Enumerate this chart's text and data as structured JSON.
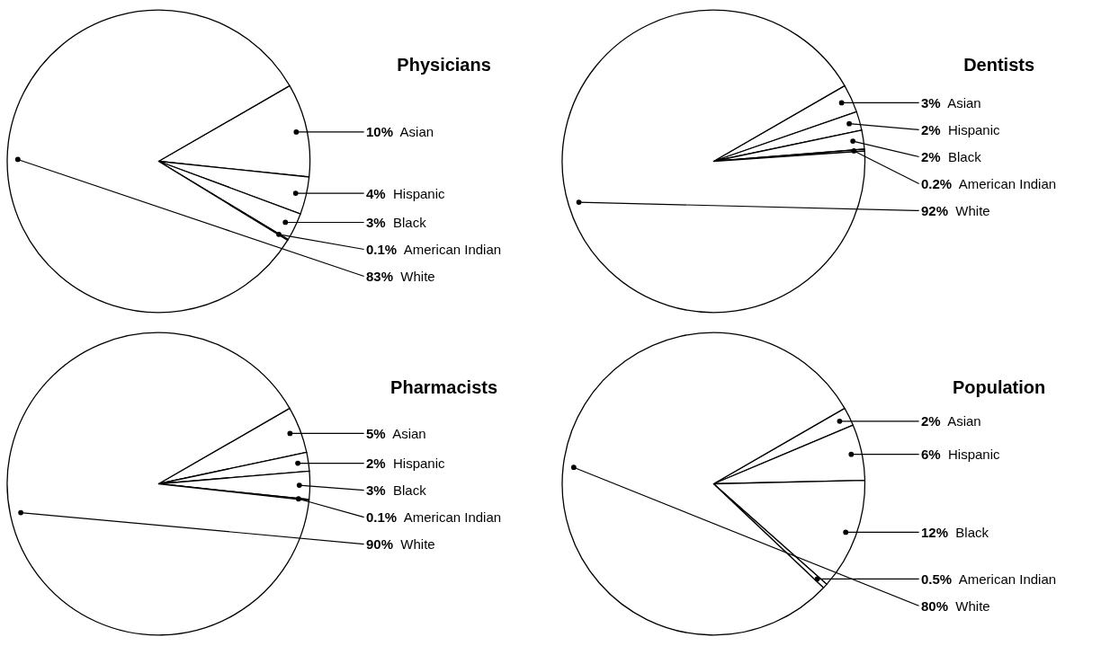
{
  "chart_data": [
    {
      "type": "pie",
      "title": "Physicians",
      "categories": [
        "Asian",
        "Hispanic",
        "Black",
        "American Indian",
        "White"
      ],
      "values": [
        10,
        4,
        3,
        0.1,
        83
      ],
      "value_labels": [
        "10%",
        "4%",
        "3%",
        "0.1%",
        "83%"
      ],
      "colors": [
        "#ffffff",
        "#ffffff",
        "#ffffff",
        "#ffffff",
        "#ffffff"
      ]
    },
    {
      "type": "pie",
      "title": "Dentists",
      "categories": [
        "Asian",
        "Hispanic",
        "Black",
        "American Indian",
        "White"
      ],
      "values": [
        3,
        2,
        2,
        0.2,
        92
      ],
      "value_labels": [
        "3%",
        "2%",
        "2%",
        "0.2%",
        "92%"
      ],
      "colors": [
        "#ffffff",
        "#ffffff",
        "#ffffff",
        "#ffffff",
        "#ffffff"
      ]
    },
    {
      "type": "pie",
      "title": "Pharmacists",
      "categories": [
        "Asian",
        "Hispanic",
        "Black",
        "American Indian",
        "White"
      ],
      "values": [
        5,
        2,
        3,
        0.1,
        90
      ],
      "value_labels": [
        "5%",
        "2%",
        "3%",
        "0.1%",
        "90%"
      ],
      "colors": [
        "#ffffff",
        "#ffffff",
        "#ffffff",
        "#ffffff",
        "#ffffff"
      ]
    },
    {
      "type": "pie",
      "title": "Population",
      "categories": [
        "Asian",
        "Hispanic",
        "Black",
        "American Indian",
        "White"
      ],
      "values": [
        2,
        6,
        12,
        0.5,
        80
      ],
      "value_labels": [
        "2%",
        "6%",
        "12%",
        "0.5%",
        "80%"
      ],
      "colors": [
        "#ffffff",
        "#ffffff",
        "#ffffff",
        "#ffffff",
        "#ffffff"
      ]
    }
  ]
}
